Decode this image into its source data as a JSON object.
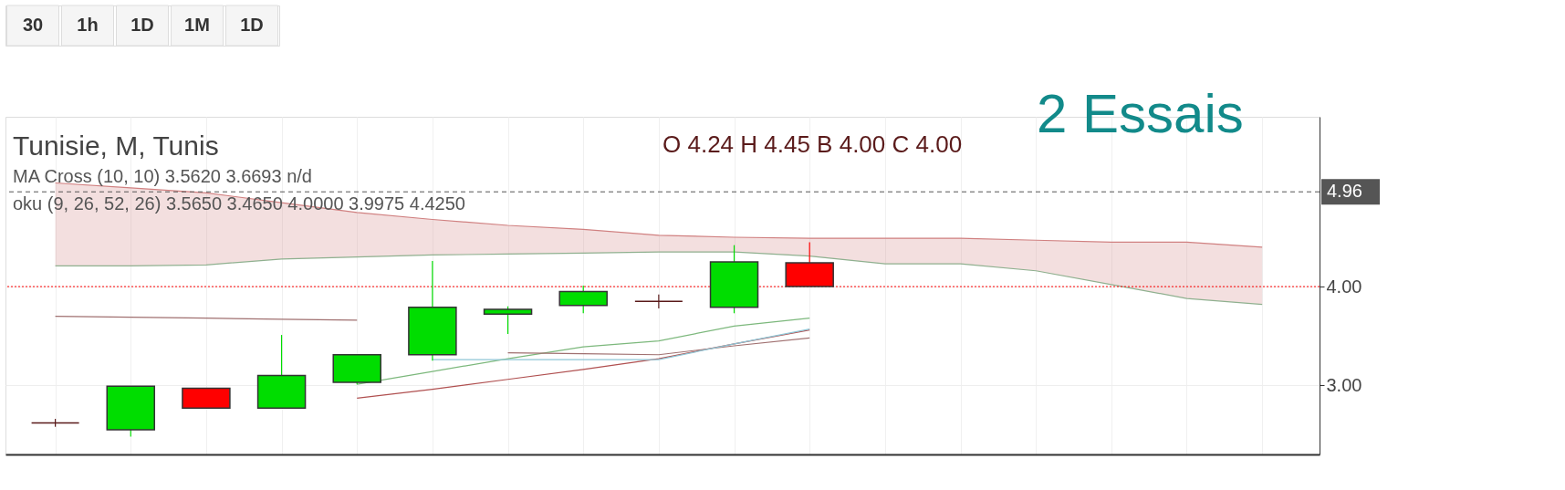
{
  "chart_data": {
    "type": "candlestick",
    "title": "Tunisie, M, Tunis",
    "categories": [
      null,
      null,
      null,
      null,
      null,
      null,
      null,
      null,
      null,
      null,
      null,
      null,
      null,
      null,
      null,
      null,
      null
    ],
    "ohlc": [
      [
        2.62,
        2.66,
        2.58,
        2.62
      ],
      [
        2.55,
        2.99,
        2.48,
        2.99
      ],
      [
        2.97,
        2.97,
        2.77,
        2.77
      ],
      [
        2.77,
        3.51,
        2.77,
        3.1
      ],
      [
        3.03,
        3.31,
        3.01,
        3.31
      ],
      [
        3.31,
        4.26,
        3.25,
        3.79
      ],
      [
        3.72,
        3.8,
        3.52,
        3.77
      ],
      [
        3.81,
        4.01,
        3.73,
        3.95
      ],
      [
        3.85,
        3.92,
        3.78,
        3.85
      ],
      [
        3.79,
        4.42,
        3.73,
        4.25
      ],
      [
        4.24,
        4.45,
        4.0,
        4.0
      ],
      null,
      null,
      null,
      null,
      null,
      null
    ],
    "colors": [
      "#5a1a1a",
      "#00dd00",
      "#ff0000",
      "#00dd00",
      "#00dd00",
      "#00dd00",
      "#00dd00",
      "#00dd00",
      "#5a1a1a",
      "#00dd00",
      "#ff0000",
      null,
      null,
      null,
      null,
      null,
      null
    ],
    "series": [
      {
        "type": "line",
        "color": "#d08080",
        "values": [
          5.05,
          5.0,
          4.95,
          4.85,
          4.75,
          4.68,
          4.62,
          4.58,
          4.52,
          4.5,
          4.49,
          4.49,
          4.49,
          4.47,
          4.45,
          4.45,
          4.4
        ],
        "lower": [
          4.21,
          4.21,
          4.22,
          4.28,
          4.3,
          4.32,
          4.33,
          4.34,
          4.35,
          4.35,
          4.31,
          4.23,
          4.23,
          4.16,
          4.02,
          3.88,
          3.82
        ],
        "upper": [
          5.05,
          5.0,
          4.95,
          4.85,
          4.75,
          4.68,
          4.62,
          4.58,
          4.52,
          4.5,
          4.49,
          4.49,
          4.49,
          4.47,
          4.45,
          4.45,
          4.4
        ]
      },
      {
        "type": "line",
        "color": "#8fb08f",
        "values": [
          4.21,
          4.21,
          4.22,
          4.28,
          4.3,
          4.32,
          4.33,
          4.34,
          4.35,
          4.35,
          4.31,
          4.23,
          4.23,
          4.16,
          4.02,
          3.88,
          3.82
        ]
      },
      {
        "type": "line",
        "color": "#7cb87c",
        "values": [
          null,
          null,
          null,
          null,
          3.01,
          3.14,
          3.27,
          3.39,
          3.45,
          3.6,
          3.68,
          null,
          null,
          null,
          null,
          null,
          null
        ]
      },
      {
        "type": "line",
        "color": "#b05050",
        "values": [
          null,
          null,
          null,
          null,
          2.87,
          2.96,
          3.06,
          3.16,
          3.27,
          3.42,
          3.56,
          null,
          null,
          null,
          null,
          null,
          null
        ]
      },
      {
        "type": "line",
        "color": "#a07070",
        "values": [
          3.7,
          3.69,
          3.68,
          3.67,
          3.66,
          null,
          3.33,
          3.32,
          3.31,
          3.4,
          3.48,
          null,
          null,
          null,
          null,
          null,
          null
        ]
      },
      {
        "type": "line",
        "color": "#8ec6d6",
        "values": [
          null,
          null,
          null,
          null,
          null,
          3.26,
          3.26,
          3.26,
          3.26,
          3.42,
          3.57,
          null,
          null,
          null,
          null,
          null,
          null
        ]
      }
    ],
    "ylim": [
      2.3,
      5.72
    ],
    "yticks": [
      {
        "value": 3,
        "label": "3.00"
      },
      {
        "value": 4,
        "label": "4.00"
      }
    ],
    "ref_lines": [
      {
        "axis": "y",
        "value": 4.96,
        "label": "4.96",
        "color": "#555555",
        "line_style": "dashed"
      },
      {
        "axis": "y",
        "value": 4.0,
        "color": "#ff0000",
        "line_style": "dotted"
      }
    ],
    "tick_labels": "y",
    "grid": true,
    "annotations": [
      "O 4.24  H 4.45  B 4.00  C 4.00",
      "MA Cross (10, 10)   3.5620  3.6693  n/d",
      "oku (9, 26, 52, 26)   3.5650  3.4650  4.0000  3.9975  4.4250",
      "2 Essais",
      "30",
      "1h",
      "1D",
      "1M",
      "1D"
    ]
  }
}
